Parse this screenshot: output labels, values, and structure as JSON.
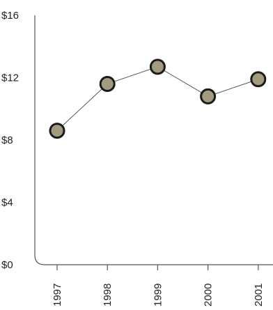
{
  "chart_data": {
    "type": "line",
    "title": "",
    "xlabel": "",
    "ylabel": "",
    "categories": [
      "1997",
      "1998",
      "1999",
      "2000",
      "2001"
    ],
    "series": [
      {
        "values": [
          8.6,
          11.6,
          12.7,
          10.8,
          11.9
        ]
      }
    ],
    "ylim": [
      0,
      16
    ],
    "y_ticks": [
      0,
      4,
      8,
      12,
      16
    ],
    "y_tick_labels": [
      "$0",
      "$4",
      "$8",
      "$12",
      "$16"
    ],
    "grid": false,
    "legend": "none",
    "colors": {
      "marker_fill": "#a39a80",
      "marker_stroke": "#1a1a1a",
      "line": "#555555",
      "axis": "#555555"
    }
  }
}
